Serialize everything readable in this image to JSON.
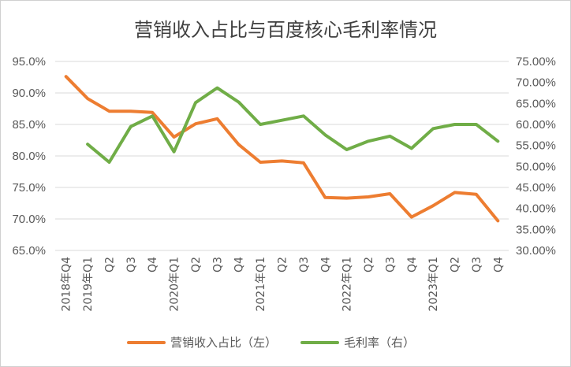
{
  "chart_data": {
    "type": "line",
    "title": "营销收入占比与百度核心毛利率情况",
    "categories": [
      "2018年Q4",
      "2019年Q1",
      "Q2",
      "Q3",
      "Q4",
      "2020年Q1",
      "Q2",
      "Q3",
      "Q4",
      "2021年Q1",
      "Q2",
      "Q3",
      "Q4",
      "2022年Q1",
      "Q2",
      "Q3",
      "Q4",
      "2023年Q1",
      "Q2",
      "Q3",
      "Q4"
    ],
    "series": [
      {
        "name": "营销收入占比（左）",
        "axis": "left",
        "color": "#ed7d31",
        "values": [
          92.6,
          89.1,
          87.1,
          87.1,
          86.9,
          83.0,
          85.1,
          85.9,
          81.8,
          79.0,
          79.2,
          78.9,
          73.4,
          73.3,
          73.5,
          74.0,
          70.3,
          72.1,
          74.2,
          73.9,
          69.7
        ]
      },
      {
        "name": "毛利率（右）",
        "axis": "right",
        "color": "#70ad47",
        "values": [
          null,
          55.3,
          51.0,
          59.5,
          62.0,
          53.5,
          65.2,
          68.7,
          65.3,
          60.0,
          61.0,
          62.0,
          57.5,
          54.0,
          56.0,
          57.2,
          54.3,
          59.0,
          60.0,
          60.0,
          56.0
        ]
      }
    ],
    "yleft": {
      "min": 65,
      "max": 95,
      "step": 5,
      "tick_labels": [
        "65.0%",
        "70.0%",
        "75.0%",
        "80.0%",
        "85.0%",
        "90.0%",
        "95.0%"
      ]
    },
    "yright": {
      "min": 30,
      "max": 75,
      "step": 5,
      "tick_labels": [
        "30.00%",
        "35.00%",
        "40.00%",
        "45.00%",
        "50.00%",
        "55.00%",
        "60.00%",
        "65.00%",
        "70.00%",
        "75.00%"
      ]
    },
    "grid": true,
    "legend": "bottom"
  }
}
